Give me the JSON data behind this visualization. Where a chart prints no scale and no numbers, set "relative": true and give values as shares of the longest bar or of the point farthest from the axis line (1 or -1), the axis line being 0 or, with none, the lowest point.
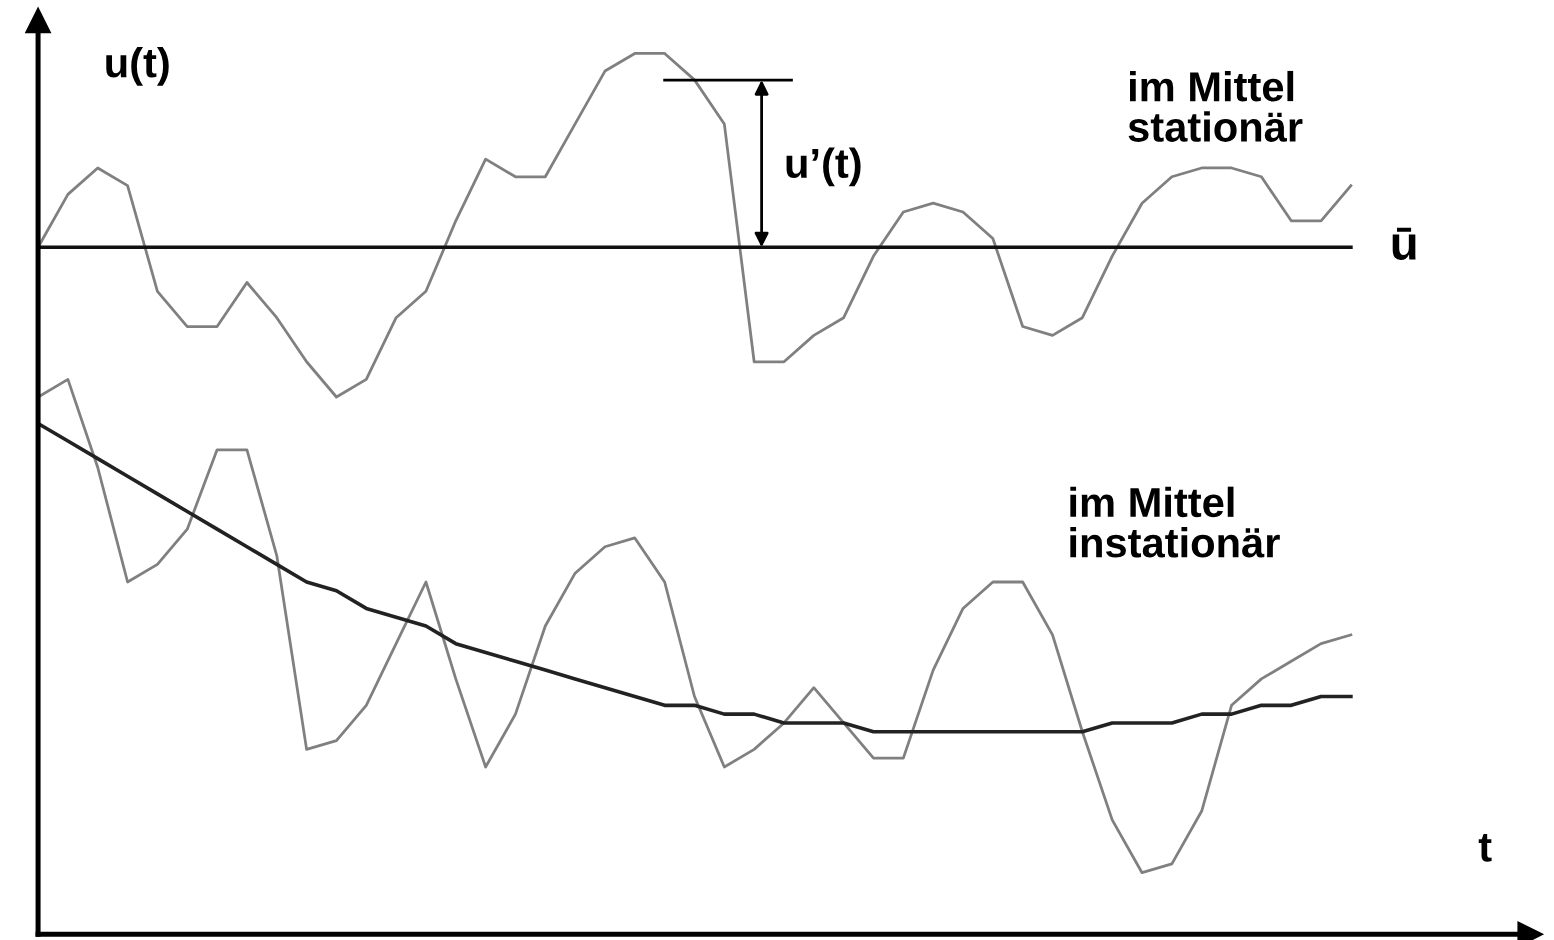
{
  "chart_data": {
    "type": "line",
    "relative": true,
    "xlabel": "t",
    "ylabel": "u(t)",
    "marker": "none",
    "line_style": "solid",
    "categories": [
      null,
      null,
      null,
      null,
      null,
      null,
      null,
      null,
      null,
      null,
      null,
      null,
      null,
      null,
      null,
      null,
      null,
      null,
      null,
      null,
      null,
      null,
      null,
      null,
      null,
      null,
      null,
      null,
      null,
      null,
      null,
      null,
      null,
      null,
      null,
      null,
      null,
      null,
      null,
      null,
      null,
      null,
      null,
      null,
      null,
      null,
      null,
      null,
      null,
      null,
      null
    ],
    "annotations": [
      "im Mittel\nstationär",
      "im Mittel\ninstationär",
      "u’(t)"
    ],
    "series": [
      {
        "color": "#808080",
        "values": [
          0.78,
          0.84,
          0.87,
          0.85,
          0.73,
          0.69,
          0.69,
          0.74,
          0.7,
          0.65,
          0.61,
          0.63,
          0.7,
          0.73,
          0.81,
          0.88,
          0.86,
          0.86,
          0.92,
          0.98,
          1.0,
          1.0,
          0.97,
          0.92,
          0.65,
          0.65,
          0.68,
          0.7,
          0.77,
          0.82,
          0.83,
          0.82,
          0.79,
          0.69,
          0.68,
          0.7,
          0.77,
          0.83,
          0.86,
          0.87,
          0.87,
          0.86,
          0.81,
          0.81,
          0.85,
          null,
          null,
          null,
          null,
          null,
          null
        ]
      },
      {
        "name": "ū",
        "color": "#111111",
        "values": [
          0.78,
          0.78,
          0.78,
          0.78,
          0.78,
          0.78,
          0.78,
          0.78,
          0.78,
          0.78,
          0.78,
          0.78,
          0.78,
          0.78,
          0.78,
          0.78,
          0.78,
          0.78,
          0.78,
          0.78,
          0.78,
          0.78,
          0.78,
          0.78,
          0.78,
          0.78,
          0.78,
          0.78,
          0.78,
          0.78,
          0.78,
          0.78,
          0.78,
          0.78,
          0.78,
          0.78,
          0.78,
          0.78,
          0.78,
          0.78,
          0.78,
          0.78,
          0.78,
          0.78,
          0.78,
          null,
          null,
          null,
          null,
          null,
          null
        ]
      },
      {
        "color": "#808080",
        "values": [
          0.61,
          0.63,
          0.53,
          0.4,
          0.42,
          0.46,
          0.55,
          0.55,
          0.43,
          0.21,
          0.22,
          0.26,
          0.33,
          0.4,
          0.29,
          0.19,
          0.25,
          0.35,
          0.41,
          0.44,
          0.45,
          0.4,
          0.27,
          0.19,
          0.21,
          0.24,
          0.28,
          0.24,
          0.2,
          0.2,
          0.3,
          0.37,
          0.4,
          0.4,
          0.34,
          0.23,
          0.13,
          0.07,
          0.08,
          0.14,
          0.26,
          0.29,
          0.31,
          0.33,
          0.34,
          null,
          null,
          null,
          null,
          null,
          null
        ]
      },
      {
        "color": "#222222",
        "values": [
          0.58,
          0.56,
          0.54,
          0.52,
          0.5,
          0.48,
          0.46,
          0.44,
          0.42,
          0.4,
          0.39,
          0.37,
          0.36,
          0.35,
          0.33,
          0.32,
          0.31,
          0.3,
          0.29,
          0.28,
          0.27,
          0.26,
          0.26,
          0.25,
          0.25,
          0.24,
          0.24,
          0.24,
          0.23,
          0.23,
          0.23,
          0.23,
          0.23,
          0.23,
          0.23,
          0.23,
          0.24,
          0.24,
          0.24,
          0.25,
          0.25,
          0.26,
          0.26,
          0.27,
          0.27,
          null,
          null,
          null,
          null,
          null,
          null
        ]
      }
    ]
  }
}
